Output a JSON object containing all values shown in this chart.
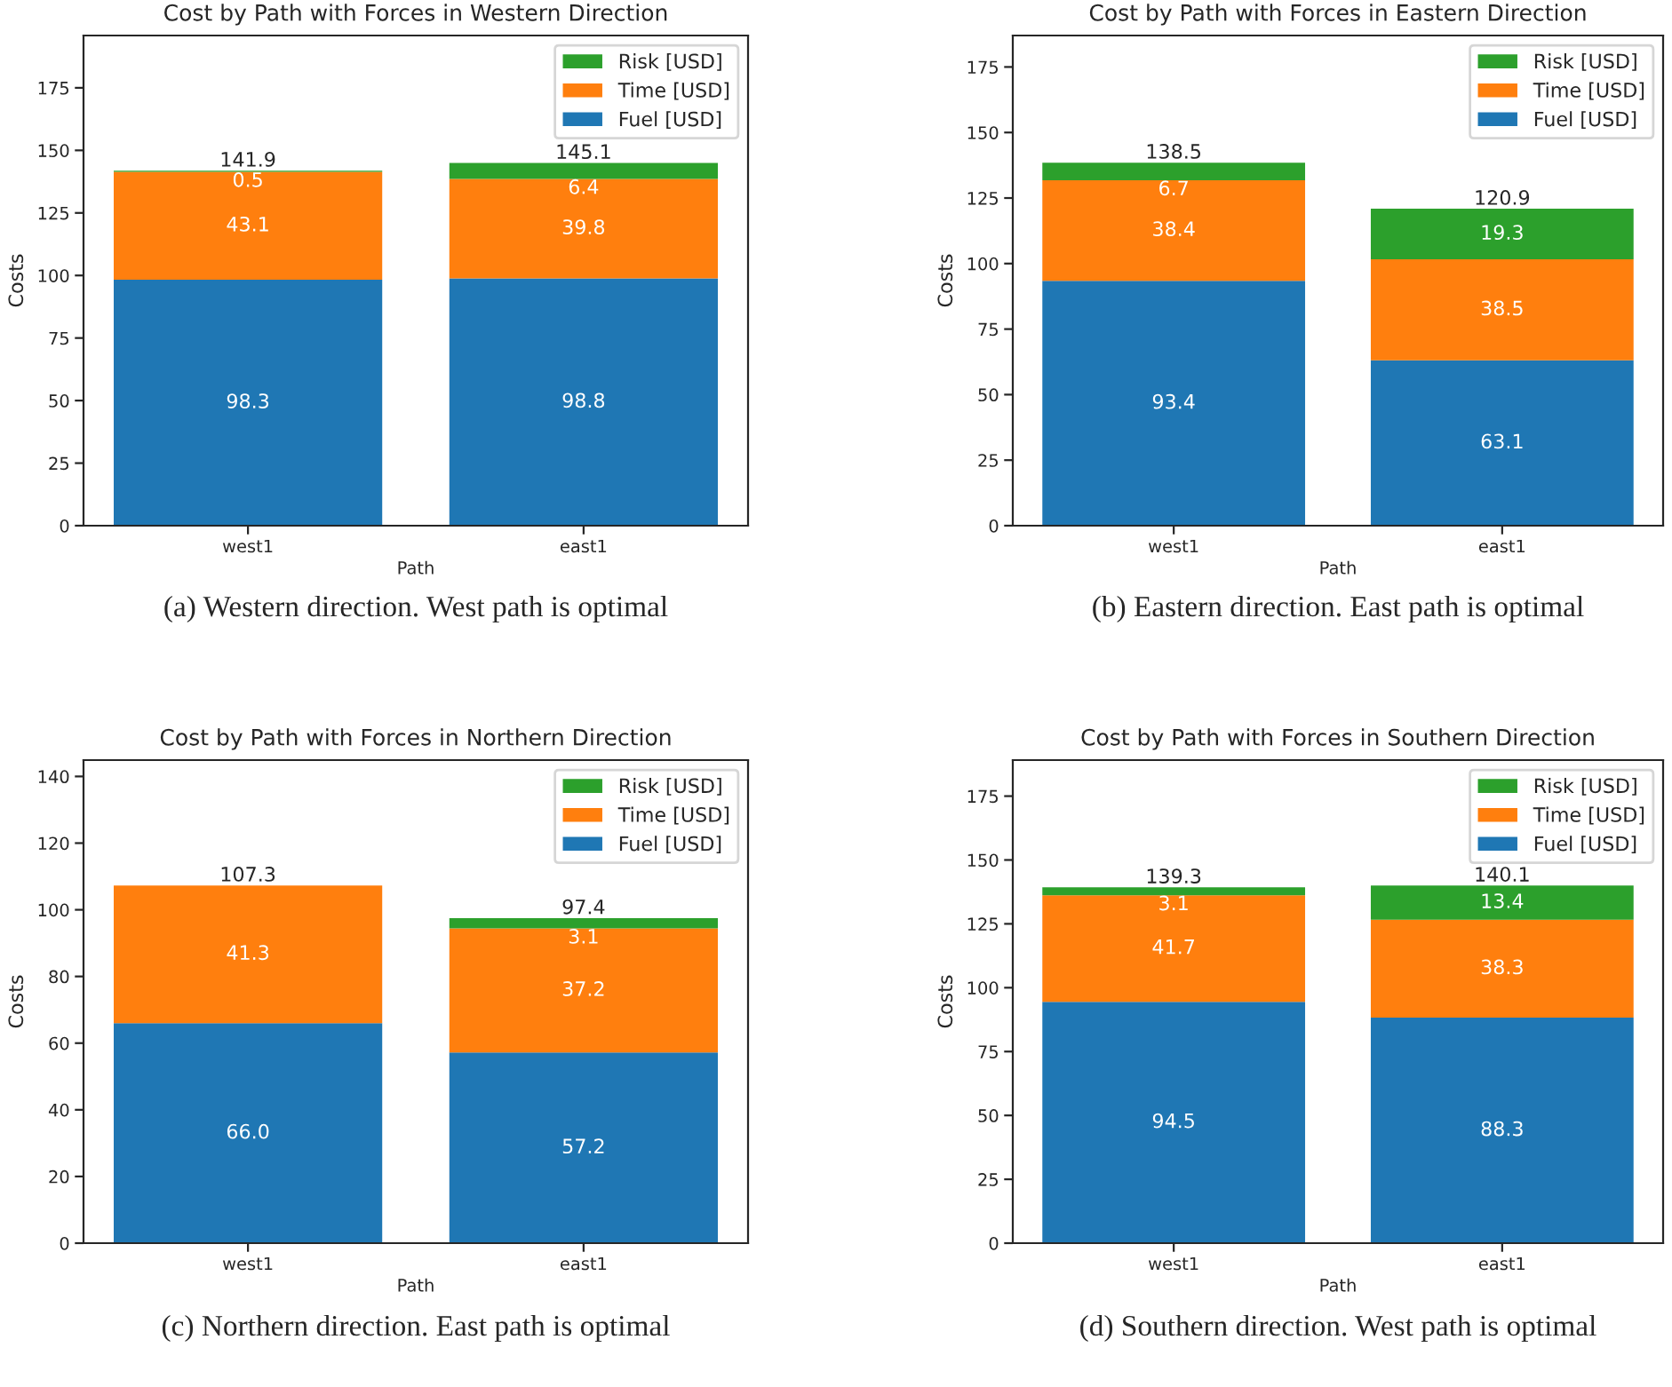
{
  "chart_data": [
    {
      "type": "bar",
      "stacked": true,
      "title": "Cost by Path with Forces in Western Direction",
      "xlabel": "Path",
      "ylabel": "Costs",
      "categories": [
        "west1",
        "east1"
      ],
      "ylim": [
        0,
        195.9
      ],
      "yticks": [
        0,
        25,
        50,
        75,
        100,
        125,
        150,
        175
      ],
      "legend": "top right",
      "grid": false,
      "series": [
        {
          "name": "Fuel [USD]",
          "color": "#1f77b4",
          "values": [
            98.3,
            98.8
          ],
          "value_labels": [
            "98.3",
            "98.8"
          ]
        },
        {
          "name": "Time [USD]",
          "color": "#ff7f0e",
          "values": [
            43.1,
            39.8
          ],
          "value_labels": [
            "43.1",
            "39.8"
          ]
        },
        {
          "name": "Risk [USD]",
          "color": "#2ca02c",
          "values": [
            0.5,
            6.4
          ],
          "value_labels": [
            "0.5",
            "6.4"
          ]
        }
      ],
      "totals": [
        "141.9",
        "145.1"
      ],
      "annotations": [
        "(a) Western direction. West path is optimal"
      ]
    },
    {
      "type": "bar",
      "stacked": true,
      "title": "Cost by Path with Forces in Eastern Direction",
      "xlabel": "Path",
      "ylabel": "Costs",
      "categories": [
        "west1",
        "east1"
      ],
      "ylim": [
        0,
        187
      ],
      "yticks": [
        0,
        25,
        50,
        75,
        100,
        125,
        150,
        175
      ],
      "legend": "top right",
      "grid": false,
      "series": [
        {
          "name": "Fuel [USD]",
          "color": "#1f77b4",
          "values": [
            93.4,
            63.1
          ],
          "value_labels": [
            "93.4",
            "63.1"
          ]
        },
        {
          "name": "Time [USD]",
          "color": "#ff7f0e",
          "values": [
            38.4,
            38.5
          ],
          "value_labels": [
            "38.4",
            "38.5"
          ]
        },
        {
          "name": "Risk [USD]",
          "color": "#2ca02c",
          "values": [
            6.7,
            19.3
          ],
          "value_labels": [
            "6.7",
            "19.3"
          ]
        }
      ],
      "totals": [
        "138.5",
        "120.9"
      ],
      "annotations": [
        "(b) Eastern direction. East path is optimal"
      ]
    },
    {
      "type": "bar",
      "stacked": true,
      "title": "Cost by Path with Forces in Northern Direction",
      "xlabel": "Path",
      "ylabel": "Costs",
      "categories": [
        "west1",
        "east1"
      ],
      "ylim": [
        0,
        144.9
      ],
      "yticks": [
        0,
        20,
        40,
        60,
        80,
        100,
        120,
        140
      ],
      "legend": "top right",
      "grid": false,
      "series": [
        {
          "name": "Fuel [USD]",
          "color": "#1f77b4",
          "values": [
            66.0,
            57.2
          ],
          "value_labels": [
            "66.0",
            "57.2"
          ]
        },
        {
          "name": "Time [USD]",
          "color": "#ff7f0e",
          "values": [
            41.3,
            37.2
          ],
          "value_labels": [
            "41.3",
            "37.2"
          ]
        },
        {
          "name": "Risk [USD]",
          "color": "#2ca02c",
          "values": [
            0,
            3.1
          ],
          "value_labels": [
            null,
            "3.1"
          ]
        }
      ],
      "totals": [
        "107.3",
        "97.4"
      ],
      "annotations": [
        "(c) Northern direction. East path is optimal"
      ]
    },
    {
      "type": "bar",
      "stacked": true,
      "title": "Cost by Path with Forces in Southern Direction",
      "xlabel": "Path",
      "ylabel": "Costs",
      "categories": [
        "west1",
        "east1"
      ],
      "ylim": [
        0,
        189.1
      ],
      "yticks": [
        0,
        25,
        50,
        75,
        100,
        125,
        150,
        175
      ],
      "legend": "top right",
      "grid": false,
      "series": [
        {
          "name": "Fuel [USD]",
          "color": "#1f77b4",
          "values": [
            94.5,
            88.3
          ],
          "value_labels": [
            "94.5",
            "88.3"
          ]
        },
        {
          "name": "Time [USD]",
          "color": "#ff7f0e",
          "values": [
            41.7,
            38.3
          ],
          "value_labels": [
            "41.7",
            "38.3"
          ]
        },
        {
          "name": "Risk [USD]",
          "color": "#2ca02c",
          "values": [
            3.1,
            13.4
          ],
          "value_labels": [
            "3.1",
            "13.4"
          ]
        }
      ],
      "totals": [
        "139.3",
        "140.1"
      ],
      "annotations": [
        "(d) Southern direction. West path is optimal"
      ]
    }
  ]
}
